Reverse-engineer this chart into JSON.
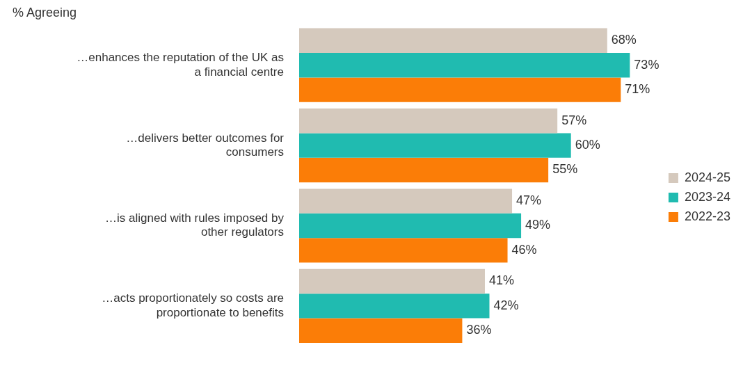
{
  "chart_data": {
    "type": "bar",
    "orientation": "horizontal",
    "subtitle": "% Agreeing",
    "categories": [
      "…enhances the reputation of the UK as a financial centre",
      "…delivers better outcomes for consumers",
      "…is aligned with rules imposed by other regulators",
      "…acts proportionately so costs are proportionate to benefits"
    ],
    "series": [
      {
        "name": "2024-25",
        "color": "#d5c9bd",
        "values": [
          68,
          57,
          47,
          41
        ],
        "value_labels": [
          "68%",
          "57%",
          "47%",
          "41%"
        ]
      },
      {
        "name": "2023-24",
        "color": "#20bbb0",
        "values": [
          73,
          60,
          49,
          42
        ],
        "value_labels": [
          "73%",
          "60%",
          "49%",
          "42%"
        ]
      },
      {
        "name": "2022-23",
        "color": "#fb7d07",
        "values": [
          71,
          55,
          46,
          36
        ],
        "value_labels": [
          "71%",
          "55%",
          "46%",
          "36%"
        ]
      }
    ],
    "legend": "right"
  }
}
